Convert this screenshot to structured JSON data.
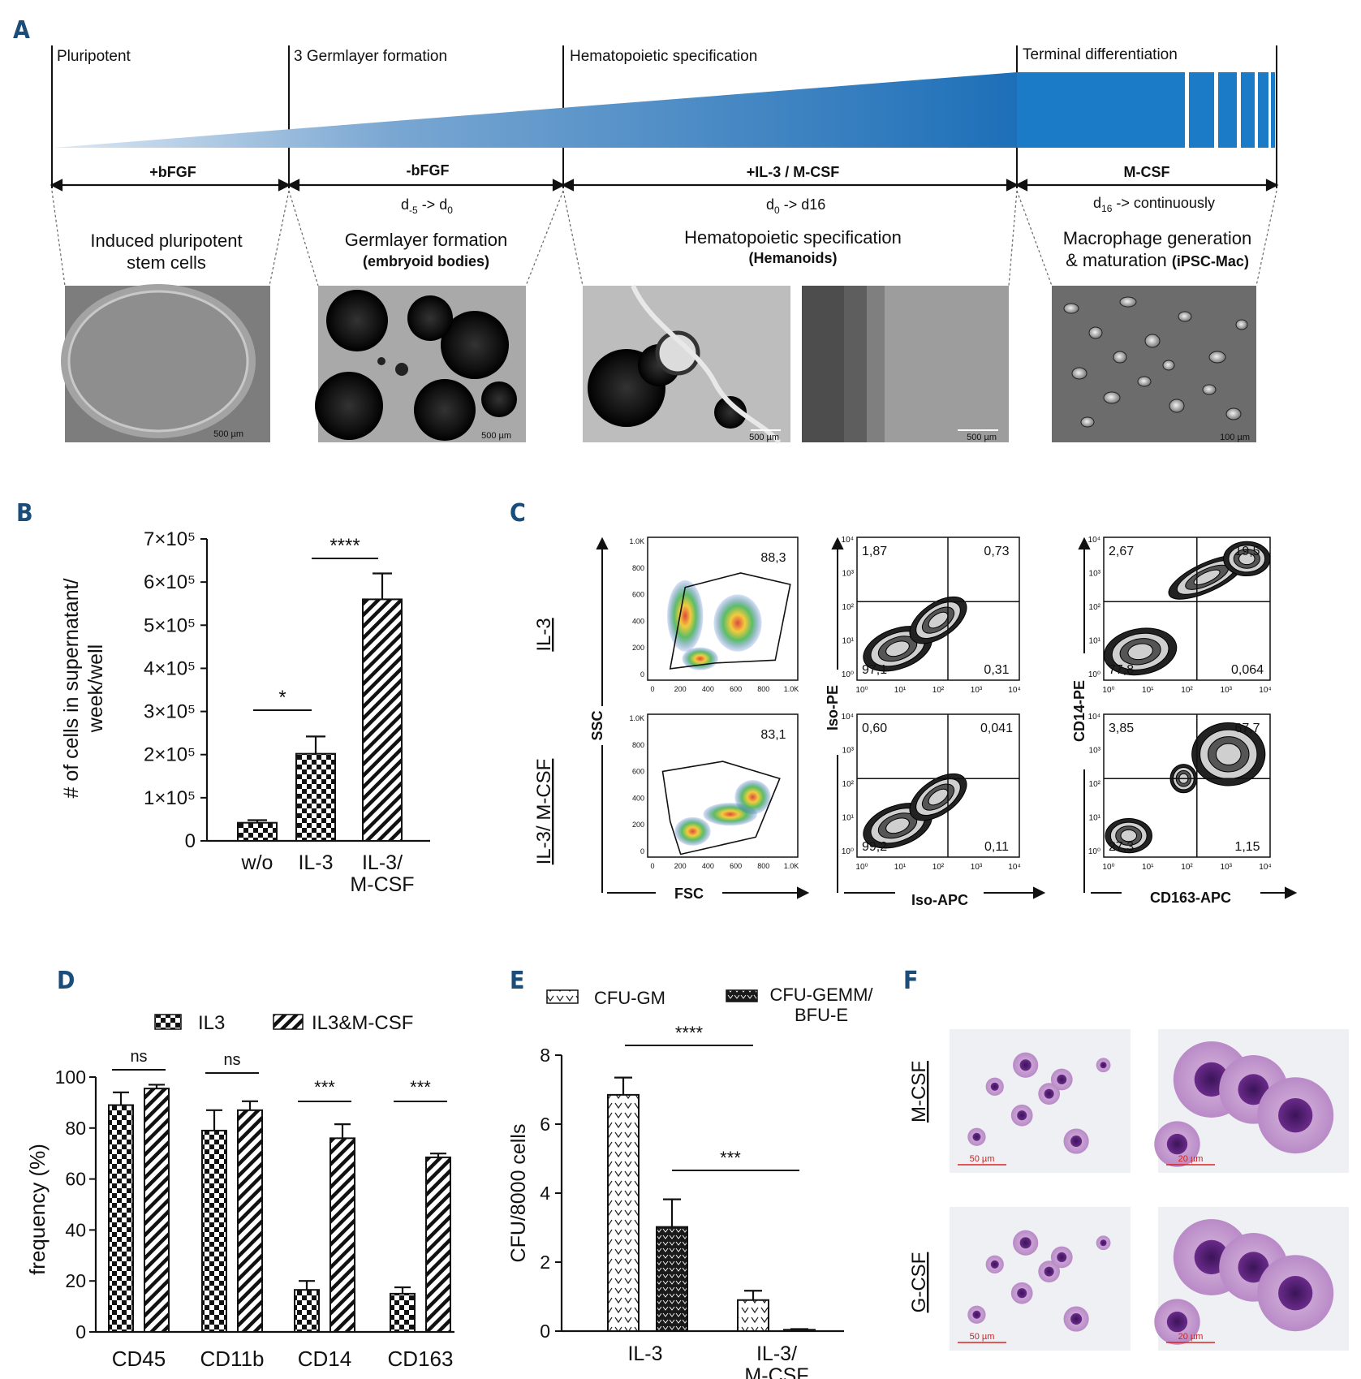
{
  "panels": {
    "a": "A",
    "b": "B",
    "c": "C",
    "d": "D",
    "e": "E",
    "f": "F"
  },
  "panel_a": {
    "stages": [
      "Pluripotent",
      "3 Germlayer formation",
      "Hematopoietic specification",
      "Terminal differentiation"
    ],
    "conditions": [
      "+bFGF",
      "-bFGF",
      "+IL-3 / M-CSF",
      "M-CSF"
    ],
    "days": [
      "d-5 -> d0",
      "d0 -> d16",
      "d16 -> continuously"
    ],
    "desc": [
      {
        "line1": "Induced pluripotent",
        "line2": "stem cells"
      },
      {
        "line1": "Germlayer formation",
        "line2": "(embryoid bodies)"
      },
      {
        "line1": "Hematopoietic specification",
        "line2": "(Hemanoids)"
      },
      {
        "line1": "Macrophage generation",
        "line2": "& maturation",
        "line2b": "(iPSC-Mac)"
      }
    ],
    "scale_bars": [
      "500 µm",
      "500 µm",
      "500 µm",
      "500 µm",
      "100 µm"
    ],
    "colors": {
      "gradient_light": "#cfe0ef",
      "gradient_dark": "#1b7bc6"
    }
  },
  "panel_c": {
    "rows": [
      "IL-3",
      "IL-3/ M-CSF"
    ],
    "axis": {
      "ssc": "SSC",
      "fsc": "FSC",
      "iso_pe": "Iso-PE",
      "iso_apc": "Iso-APC",
      "cd14": "CD14-PE",
      "cd163": "CD163-APC"
    },
    "scatter_ticks_y": [
      "1.0K",
      "800",
      "600",
      "400",
      "200",
      "0"
    ],
    "scatter_ticks_x": [
      "0",
      "200",
      "400",
      "600",
      "800",
      "1.0K"
    ],
    "log_ticks": [
      "10⁰",
      "10¹",
      "10²",
      "10³",
      "10⁴"
    ],
    "gates": [
      {
        "scatter": "88,3",
        "iso_ul": "1,87",
        "iso_ur": "0,73",
        "iso_ll": "97,1",
        "iso_lr": "0,31",
        "cd_ul": "2,67",
        "cd_ur": "19,5",
        "cd_ll": "77,8",
        "cd_lr": "0,064"
      },
      {
        "scatter": "83,1",
        "iso_ul": "0,60",
        "iso_ur": "0,041",
        "iso_ll": "99,2",
        "iso_lr": "0,11",
        "cd_ul": "3,85",
        "cd_ur": "67,7",
        "cd_ll": "27,3",
        "cd_lr": "1,15"
      }
    ]
  },
  "panel_f": {
    "rows": [
      "M-CSF",
      "G-CSF"
    ],
    "scale_bars": [
      "50 µm",
      "20 µm",
      "50 µm",
      "20 µm"
    ]
  },
  "chart_data": [
    {
      "type": "bar",
      "panel": "B",
      "categories": [
        "w/o",
        "IL-3",
        "IL-3/ M-CSF"
      ],
      "category_lines": [
        [
          "w/o"
        ],
        [
          "IL-3"
        ],
        [
          "IL-3/",
          "M-CSF"
        ]
      ],
      "values": [
        42000,
        202000,
        560000
      ],
      "errors": [
        6000,
        40000,
        60000
      ],
      "ylabel_lines": [
        "# of cells in supernatant/",
        "week/well"
      ],
      "ytick_labels": [
        "0",
        "1×10⁵",
        "2×10⁵",
        "3×10⁵",
        "4×10⁵",
        "5×10⁵",
        "6×10⁵",
        "7×10⁵"
      ],
      "ylim": [
        0,
        700000
      ],
      "significance": [
        {
          "from": 0,
          "to": 1,
          "label": "*"
        },
        {
          "from": 1,
          "to": 2,
          "label": "****"
        }
      ]
    },
    {
      "type": "bar",
      "panel": "D",
      "categories": [
        "CD45",
        "CD11b",
        "CD14",
        "CD163"
      ],
      "series": [
        {
          "name": "IL3",
          "values": [
            89,
            79,
            16.5,
            15
          ],
          "errors": [
            5,
            8,
            3.5,
            2.5
          ]
        },
        {
          "name": "IL3&M-CSF",
          "values": [
            95.5,
            87,
            76,
            68.5
          ],
          "errors": [
            1.5,
            3.5,
            5.5,
            1.5
          ]
        }
      ],
      "ylabel": "frequency (%)",
      "ytick_labels": [
        "0",
        "20",
        "40",
        "60",
        "80",
        "100"
      ],
      "ylim": [
        0,
        100
      ],
      "legend": "top",
      "significance": [
        "ns",
        "ns",
        "***",
        "***"
      ]
    },
    {
      "type": "bar",
      "panel": "E",
      "categories": [
        "IL-3",
        "IL-3/ M-CSF"
      ],
      "category_lines": [
        [
          "IL-3"
        ],
        [
          "IL-3/",
          "M-CSF"
        ]
      ],
      "series": [
        {
          "name": "CFU-GM",
          "values": [
            6.85,
            0.9
          ],
          "errors": [
            0.5,
            0.27
          ]
        },
        {
          "name": "CFU-GEMM/ BFU-E",
          "name_lines": [
            "CFU-GEMM/",
            "BFU-E"
          ],
          "values": [
            3.02,
            0.04
          ],
          "errors": [
            0.8,
            0.02
          ]
        }
      ],
      "ylabel": "CFU/8000 cells",
      "ytick_labels": [
        "0",
        "2",
        "4",
        "6",
        "8"
      ],
      "ylim": [
        0,
        8
      ],
      "legend": "top",
      "significance": [
        {
          "label": "****"
        },
        {
          "label": "***"
        }
      ]
    }
  ]
}
